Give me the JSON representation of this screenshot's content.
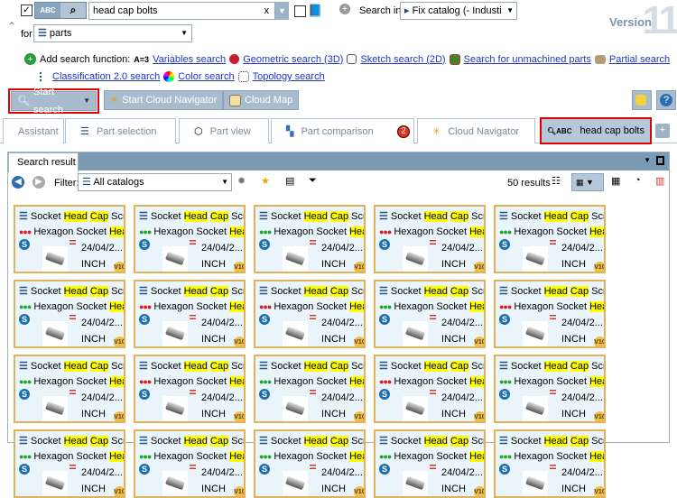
{
  "version": {
    "label": "Version",
    "number": "11"
  },
  "search": {
    "query": "head cap bolts",
    "abc": "ABC",
    "search_in_label": "Search in",
    "catalog": "Fix catalog (- Industi",
    "for_label": "for",
    "for_value": "parts",
    "clear": "x"
  },
  "functions": {
    "label": "Add search function:",
    "items": [
      "Variables search",
      "Geometric search (3D)",
      "Sketch search (2D)",
      "Search for unmachined parts",
      "Partial search",
      "Classification 2.0 search",
      "Color search",
      "Topology search"
    ]
  },
  "buttons": {
    "start_search": "Start search",
    "start_cloud": "Start Cloud Navigator",
    "cloud_map": "Cloud Map"
  },
  "tabs": [
    {
      "label": "Assistant"
    },
    {
      "label": "Part selection"
    },
    {
      "label": "Part view"
    },
    {
      "label": "Part comparison",
      "badge": "2"
    },
    {
      "label": "Cloud Navigator"
    },
    {
      "label": "head cap bolts",
      "active": true
    },
    {
      "label": "+"
    }
  ],
  "result": {
    "title": "Search result",
    "filter_label": "Filter:",
    "filter_value": "All catalogs",
    "count": "50 results"
  },
  "cards": [
    {
      "dots": "red"
    },
    {
      "dots": "green"
    },
    {
      "dots": "green"
    },
    {
      "dots": "red"
    },
    {
      "dots": "green"
    },
    {
      "dots": "green"
    },
    {
      "dots": "red"
    },
    {
      "dots": "red"
    },
    {
      "dots": "green"
    },
    {
      "dots": "red"
    },
    {
      "dots": "green"
    },
    {
      "dots": "red"
    },
    {
      "dots": "green"
    },
    {
      "dots": "red"
    },
    {
      "dots": "green"
    },
    {
      "dots": "green"
    },
    {
      "dots": "green"
    },
    {
      "dots": "green"
    },
    {
      "dots": "green"
    },
    {
      "dots": "green"
    }
  ],
  "card_text": {
    "t1": "Socket ",
    "h1": "Head",
    "t2": " ",
    "h2": "Cap",
    "t3": " Scre",
    "l2": "Hexagon Socket ",
    "h3": "Heac",
    "date": "24/04/2...",
    "unit": "INCH",
    "badge": "V10",
    "s": "S"
  },
  "colors": {
    "red": "#d42020",
    "green": "#1fa52a",
    "highlight": "#ffff00",
    "card_border": "#e0b25a",
    "accent_red": "#e00000"
  }
}
